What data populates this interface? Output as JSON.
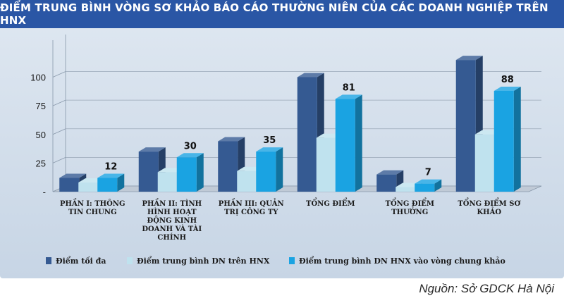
{
  "title": "ĐIỂM TRUNG BÌNH VÒNG SƠ KHẢO BÁO CÁO THƯỜNG NIÊN CỦA CÁC DOANH NGHIỆP TRÊN HNX",
  "source": "Nguồn: Sở GDCK Hà Nội",
  "colors": {
    "title_bg": "#2a56a5",
    "panel_bg": "#d4dfeb"
  },
  "chart_data": {
    "type": "bar",
    "categories": [
      [
        "PHẦN I: THÔNG",
        "TIN CHUNG"
      ],
      [
        "PHẦN II: TÌNH",
        "HÌNH HOẠT",
        "ĐỘNG KINH",
        "DOANH VÀ TÀI",
        "CHÍNH"
      ],
      [
        "PHẦN III: QUẢN",
        "TRỊ CÔNG TY"
      ],
      [
        "TỔNG ĐIỂM"
      ],
      [
        "TỔNG ĐIỂM",
        "THƯỞNG"
      ],
      [
        "TỔNG ĐIỂM SƠ",
        "KHẢO"
      ]
    ],
    "series": [
      {
        "name": "Điểm tối đa",
        "values": [
          12,
          35,
          44,
          100,
          15,
          115
        ],
        "color": "#355a92"
      },
      {
        "name": "Điểm trung bình DN trên HNX",
        "values": [
          8,
          17,
          18,
          47,
          4,
          50
        ],
        "color": "#bfe2ee"
      },
      {
        "name": "Điểm trung bình DN HNX vào vòng chung khảo",
        "values": [
          12,
          30,
          35,
          81,
          7,
          88
        ],
        "color": "#1aa3e2",
        "show_labels": true
      }
    ],
    "y_ticks": [
      "-",
      "25",
      "50",
      "75",
      "100"
    ],
    "y_tick_values": [
      0,
      25,
      50,
      75,
      100
    ],
    "ylim": [
      0,
      120
    ],
    "legend_position": "bottom",
    "grid": true
  }
}
